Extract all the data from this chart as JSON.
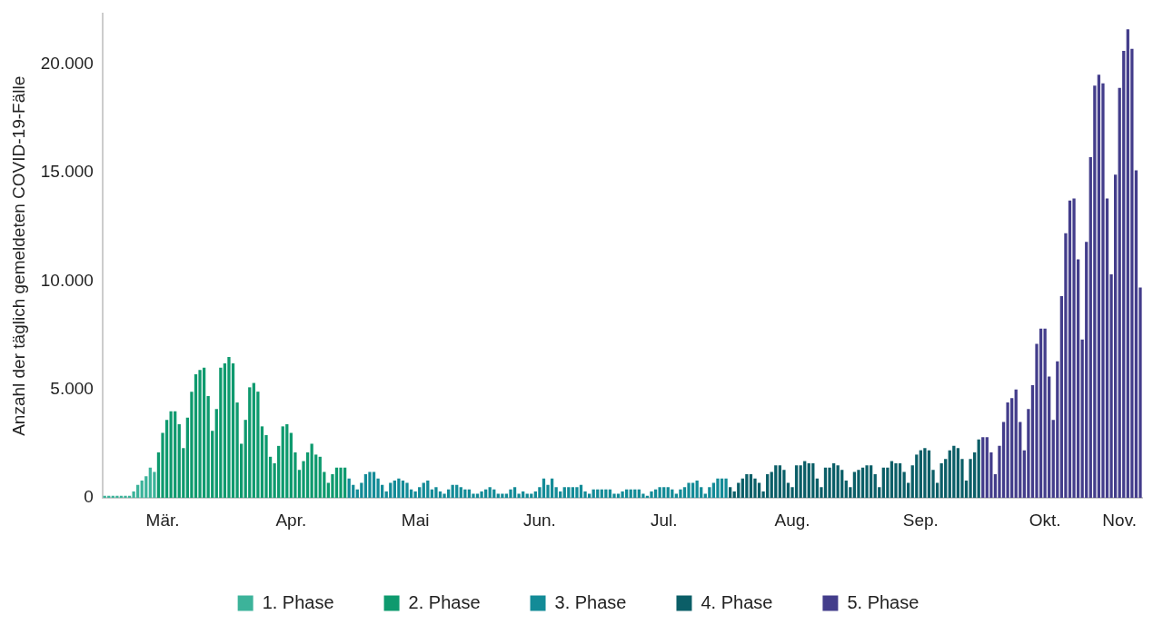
{
  "chart_data": {
    "type": "bar",
    "ylabel": "Anzahl der täglich gemeldeten COVID-19-Fälle",
    "legend": "bottom",
    "categories": [
      null,
      null,
      null,
      null,
      null,
      null,
      null,
      null,
      null,
      null,
      null,
      null,
      null,
      null,
      "Mär.",
      null,
      null,
      null,
      null,
      null,
      null,
      null,
      null,
      null,
      null,
      null,
      null,
      null,
      null,
      null,
      null,
      null,
      null,
      null,
      null,
      null,
      null,
      null,
      null,
      null,
      null,
      null,
      null,
      null,
      null,
      "Apr.",
      null,
      null,
      null,
      null,
      null,
      null,
      null,
      null,
      null,
      null,
      null,
      null,
      null,
      null,
      null,
      null,
      null,
      null,
      null,
      null,
      null,
      null,
      null,
      null,
      null,
      null,
      null,
      null,
      null,
      "Mai",
      null,
      null,
      null,
      null,
      null,
      null,
      null,
      null,
      null,
      null,
      null,
      null,
      null,
      null,
      null,
      null,
      null,
      null,
      null,
      null,
      null,
      null,
      null,
      null,
      null,
      null,
      null,
      null,
      null,
      "Jun.",
      null,
      null,
      null,
      null,
      null,
      null,
      null,
      null,
      null,
      null,
      null,
      null,
      null,
      null,
      null,
      null,
      null,
      null,
      null,
      null,
      null,
      null,
      null,
      null,
      null,
      null,
      null,
      null,
      null,
      "Jul.",
      null,
      null,
      null,
      null,
      null,
      null,
      null,
      null,
      null,
      null,
      null,
      null,
      null,
      null,
      null,
      null,
      null,
      null,
      null,
      null,
      null,
      null,
      null,
      null,
      null,
      null,
      null,
      null,
      null,
      null,
      "Aug.",
      null,
      null,
      null,
      null,
      null,
      null,
      null,
      null,
      null,
      null,
      null,
      null,
      null,
      null,
      null,
      null,
      null,
      null,
      null,
      null,
      null,
      null,
      null,
      null,
      null,
      null,
      null,
      null,
      null,
      null,
      "Sep.",
      null,
      null,
      null,
      null,
      null,
      null,
      null,
      null,
      null,
      null,
      null,
      null,
      null,
      null,
      null,
      null,
      null,
      null,
      null,
      null,
      null,
      null,
      null,
      null,
      null,
      null,
      null,
      null,
      null,
      "Okt.",
      null,
      null,
      null,
      null,
      null,
      null,
      null,
      null,
      null,
      null,
      null,
      null,
      null,
      null,
      null,
      null,
      null,
      "Nov.",
      null,
      null,
      null,
      null,
      null
    ],
    "ylim": [
      0,
      22300
    ],
    "yticks": [
      {
        "value": 0,
        "label": "0"
      },
      {
        "value": 5000,
        "label": "5.000"
      },
      {
        "value": 10000,
        "label": "10.000"
      },
      {
        "value": 15000,
        "label": "15.000"
      },
      {
        "value": 20000,
        "label": "20.000"
      }
    ],
    "series": [
      {
        "name": "1. Phase",
        "color": "#3cb39a",
        "values": [
          100,
          100,
          100,
          100,
          100,
          100,
          100,
          300,
          600,
          800,
          1000,
          1400,
          1200,
          null,
          null,
          null,
          null,
          null,
          null,
          null,
          null,
          null,
          null,
          null,
          null,
          null,
          null,
          null,
          null,
          null,
          null,
          null,
          null,
          null,
          null,
          null,
          null,
          null,
          null,
          null,
          null,
          null,
          null,
          null,
          null,
          null,
          null,
          null,
          null,
          null,
          null,
          null,
          null,
          null,
          null,
          null,
          null,
          null,
          null,
          null,
          null,
          null,
          null,
          null,
          null,
          null,
          null,
          null,
          null,
          null,
          null,
          null,
          null,
          null,
          null,
          null,
          null,
          null,
          null,
          null,
          null,
          null,
          null,
          null,
          null,
          null,
          null,
          null,
          null,
          null,
          null,
          null,
          null,
          null,
          null,
          null,
          null,
          null,
          null,
          null,
          null,
          null,
          null,
          null,
          null,
          null,
          null,
          null,
          null,
          null,
          null,
          null,
          null,
          null,
          null,
          null,
          null,
          null,
          null,
          null,
          null,
          null,
          null,
          null,
          null,
          null,
          null,
          null,
          null,
          null,
          null,
          null,
          null,
          null,
          null,
          null,
          null,
          null,
          null,
          null,
          null,
          null,
          null,
          null,
          null,
          null,
          null,
          null,
          null,
          null,
          null,
          null,
          null,
          null,
          null,
          null,
          null,
          null,
          null,
          null,
          null,
          null,
          null,
          null,
          null,
          null,
          null,
          null,
          null,
          null,
          null,
          null,
          null,
          null,
          null,
          null,
          null,
          null,
          null,
          null,
          null,
          null,
          null,
          null,
          null,
          null,
          null,
          null,
          null,
          null,
          null,
          null,
          null,
          null,
          null,
          null,
          null,
          null,
          null,
          null,
          null,
          null,
          null,
          null,
          null,
          null,
          null,
          null,
          null,
          null,
          null,
          null,
          null,
          null,
          null,
          null,
          null,
          null,
          null,
          null,
          null,
          null,
          null,
          null,
          null,
          null,
          null,
          null,
          null,
          null,
          null,
          null,
          null,
          null,
          null,
          null,
          null,
          null,
          null,
          null,
          null,
          null,
          null,
          null,
          null,
          null,
          null,
          null,
          null,
          null,
          null
        ]
      },
      {
        "name": "2. Phase",
        "color": "#0e9a6e",
        "values": [
          null,
          null,
          null,
          null,
          null,
          null,
          null,
          null,
          null,
          null,
          null,
          null,
          null,
          2100,
          3000,
          3600,
          4000,
          4000,
          3400,
          2300,
          3700,
          4900,
          5700,
          5900,
          6000,
          4700,
          3100,
          4100,
          6000,
          6200,
          6500,
          6200,
          4400,
          2500,
          3600,
          5100,
          5300,
          4900,
          3300,
          2900,
          1900,
          1600,
          2400,
          3300,
          3400,
          3000,
          2100,
          1300,
          1700,
          2100,
          2500,
          2000,
          1900,
          1200,
          700,
          1100,
          1400,
          1400,
          1400,
          null,
          null,
          null,
          null,
          null,
          null,
          null,
          null,
          null,
          null,
          null,
          null,
          null,
          null,
          null,
          null,
          null,
          null,
          null,
          null,
          null,
          null,
          null,
          null,
          null,
          null,
          null,
          null,
          null,
          null,
          null,
          null,
          null,
          null,
          null,
          null,
          null,
          null,
          null,
          null,
          null,
          null,
          null,
          null,
          null,
          null,
          null,
          null,
          null,
          null,
          null,
          null,
          null,
          null,
          null,
          null,
          null,
          null,
          null,
          null,
          null,
          null,
          null,
          null,
          null,
          null,
          null,
          null,
          null,
          null,
          null,
          null,
          null,
          null,
          null,
          null,
          null,
          null,
          null,
          null,
          null,
          null,
          null,
          null,
          null,
          null,
          null,
          null,
          null,
          null,
          null,
          null,
          null,
          null,
          null,
          null,
          null,
          null,
          null,
          null,
          null,
          null,
          null,
          null,
          null,
          null,
          null,
          null,
          null,
          null,
          null,
          null,
          null,
          null,
          null,
          null,
          null,
          null,
          null,
          null,
          null,
          null,
          null,
          null,
          null,
          null,
          null,
          null,
          null,
          null,
          null,
          null,
          null,
          null,
          null,
          null,
          null,
          null,
          null,
          null,
          null,
          null,
          null,
          null,
          null,
          null,
          null,
          null,
          null,
          null,
          null,
          null,
          null,
          null,
          null,
          null,
          null,
          null,
          null,
          null,
          null,
          null,
          null,
          null,
          null,
          null,
          null,
          null,
          null,
          null,
          null,
          null,
          null,
          null,
          null,
          null,
          null,
          null,
          null,
          null,
          null,
          null,
          null,
          null,
          null,
          null,
          null,
          null,
          null,
          null,
          null,
          null
        ]
      },
      {
        "name": "3. Phase",
        "color": "#138b97",
        "values": [
          null,
          null,
          null,
          null,
          null,
          null,
          null,
          null,
          null,
          null,
          null,
          null,
          null,
          null,
          null,
          null,
          null,
          null,
          null,
          null,
          null,
          null,
          null,
          null,
          null,
          null,
          null,
          null,
          null,
          null,
          null,
          null,
          null,
          null,
          null,
          null,
          null,
          null,
          null,
          null,
          null,
          null,
          null,
          null,
          null,
          null,
          null,
          null,
          null,
          null,
          null,
          null,
          null,
          null,
          null,
          null,
          null,
          null,
          null,
          900,
          600,
          400,
          700,
          1100,
          1200,
          1200,
          900,
          600,
          300,
          700,
          800,
          900,
          800,
          700,
          400,
          300,
          500,
          700,
          800,
          400,
          500,
          300,
          200,
          400,
          600,
          600,
          500,
          400,
          400,
          200,
          200,
          300,
          400,
          500,
          400,
          200,
          200,
          200,
          400,
          500,
          200,
          300,
          200,
          200,
          300,
          500,
          900,
          600,
          900,
          500,
          300,
          500,
          500,
          500,
          500,
          600,
          300,
          200,
          400,
          400,
          400,
          400,
          400,
          200,
          200,
          300,
          400,
          400,
          400,
          400,
          200,
          100,
          300,
          400,
          500,
          500,
          500,
          400,
          200,
          400,
          500,
          700,
          700,
          800,
          500,
          200,
          500,
          700,
          900,
          900,
          900,
          null,
          null,
          null,
          null,
          null,
          null,
          null,
          null,
          null,
          null,
          null,
          null,
          null,
          null,
          null,
          null,
          null,
          null,
          null,
          null,
          null,
          null,
          null,
          null,
          null,
          null,
          null,
          null,
          null,
          null,
          null,
          null,
          null,
          null,
          null,
          null,
          null,
          null,
          null,
          null,
          null,
          null,
          null,
          null,
          null,
          null,
          null,
          null,
          null,
          null,
          null,
          null,
          null,
          null,
          null,
          null,
          null,
          null,
          null,
          null,
          null,
          null,
          null,
          null,
          null,
          null,
          null,
          null,
          null,
          null,
          null,
          null,
          null,
          null,
          null,
          null,
          null,
          null,
          null,
          null,
          null,
          null,
          null,
          null,
          null,
          null,
          null,
          null,
          null,
          null,
          null,
          null,
          null,
          null,
          null,
          null,
          null,
          null,
          null,
          null
        ]
      },
      {
        "name": "4. Phase",
        "color": "#0b5e67",
        "values": [
          null,
          null,
          null,
          null,
          null,
          null,
          null,
          null,
          null,
          null,
          null,
          null,
          null,
          null,
          null,
          null,
          null,
          null,
          null,
          null,
          null,
          null,
          null,
          null,
          null,
          null,
          null,
          null,
          null,
          null,
          null,
          null,
          null,
          null,
          null,
          null,
          null,
          null,
          null,
          null,
          null,
          null,
          null,
          null,
          null,
          null,
          null,
          null,
          null,
          null,
          null,
          null,
          null,
          null,
          null,
          null,
          null,
          null,
          null,
          null,
          null,
          null,
          null,
          null,
          null,
          null,
          null,
          null,
          null,
          null,
          null,
          null,
          null,
          null,
          null,
          null,
          null,
          null,
          null,
          null,
          null,
          null,
          null,
          null,
          null,
          null,
          null,
          null,
          null,
          null,
          null,
          null,
          null,
          null,
          null,
          null,
          null,
          null,
          null,
          null,
          null,
          null,
          null,
          null,
          null,
          null,
          null,
          null,
          null,
          null,
          null,
          null,
          null,
          null,
          null,
          null,
          null,
          null,
          null,
          null,
          null,
          null,
          null,
          null,
          null,
          null,
          null,
          null,
          null,
          null,
          null,
          null,
          null,
          null,
          null,
          null,
          null,
          null,
          null,
          null,
          null,
          null,
          null,
          null,
          null,
          null,
          null,
          null,
          null,
          null,
          null,
          500,
          300,
          700,
          900,
          1100,
          1100,
          900,
          700,
          300,
          1100,
          1200,
          1500,
          1500,
          1300,
          700,
          500,
          1500,
          1500,
          1700,
          1600,
          1600,
          900,
          500,
          1400,
          1400,
          1600,
          1500,
          1300,
          800,
          500,
          1200,
          1300,
          1400,
          1500,
          1500,
          1100,
          500,
          1400,
          1400,
          1700,
          1600,
          1600,
          1200,
          700,
          1500,
          2000,
          2200,
          2300,
          2200,
          1300,
          700,
          1600,
          1800,
          2200,
          2400,
          2300,
          1800,
          800,
          1800,
          2100,
          2700,
          null,
          null,
          null,
          null,
          null,
          null,
          null,
          null,
          null,
          null,
          null,
          null,
          null,
          null,
          null,
          null,
          null,
          null,
          null,
          null,
          null,
          null,
          null,
          null,
          null,
          null,
          null,
          null,
          null,
          null,
          null,
          null,
          null,
          null,
          null,
          null,
          null,
          null,
          null
        ]
      },
      {
        "name": "5. Phase",
        "color": "#433d8b",
        "values": [
          null,
          null,
          null,
          null,
          null,
          null,
          null,
          null,
          null,
          null,
          null,
          null,
          null,
          null,
          null,
          null,
          null,
          null,
          null,
          null,
          null,
          null,
          null,
          null,
          null,
          null,
          null,
          null,
          null,
          null,
          null,
          null,
          null,
          null,
          null,
          null,
          null,
          null,
          null,
          null,
          null,
          null,
          null,
          null,
          null,
          null,
          null,
          null,
          null,
          null,
          null,
          null,
          null,
          null,
          null,
          null,
          null,
          null,
          null,
          null,
          null,
          null,
          null,
          null,
          null,
          null,
          null,
          null,
          null,
          null,
          null,
          null,
          null,
          null,
          null,
          null,
          null,
          null,
          null,
          null,
          null,
          null,
          null,
          null,
          null,
          null,
          null,
          null,
          null,
          null,
          null,
          null,
          null,
          null,
          null,
          null,
          null,
          null,
          null,
          null,
          null,
          null,
          null,
          null,
          null,
          null,
          null,
          null,
          null,
          null,
          null,
          null,
          null,
          null,
          null,
          null,
          null,
          null,
          null,
          null,
          null,
          null,
          null,
          null,
          null,
          null,
          null,
          null,
          null,
          null,
          null,
          null,
          null,
          null,
          null,
          null,
          null,
          null,
          null,
          null,
          null,
          null,
          null,
          null,
          null,
          null,
          null,
          null,
          null,
          null,
          null,
          null,
          null,
          null,
          null,
          null,
          null,
          null,
          null,
          null,
          null,
          null,
          null,
          null,
          null,
          null,
          null,
          null,
          null,
          null,
          null,
          null,
          null,
          null,
          null,
          null,
          null,
          null,
          null,
          null,
          null,
          null,
          null,
          null,
          null,
          null,
          null,
          null,
          null,
          null,
          null,
          null,
          null,
          null,
          null,
          null,
          null,
          null,
          null,
          null,
          null,
          null,
          null,
          null,
          null,
          null,
          null,
          null,
          null,
          null,
          null,
          null,
          2800,
          2800,
          2100,
          1100,
          2400,
          3500,
          4400,
          4600,
          5000,
          3500,
          2200,
          4100,
          5200,
          7100,
          7800,
          7800,
          5600,
          3600,
          6300,
          9300,
          12200,
          13700,
          13800,
          11000,
          7300,
          11800,
          15700,
          19000,
          19500,
          19100,
          13800,
          10300,
          14900,
          18900,
          20600,
          21600,
          20700,
          15100,
          9700
        ]
      }
    ]
  }
}
